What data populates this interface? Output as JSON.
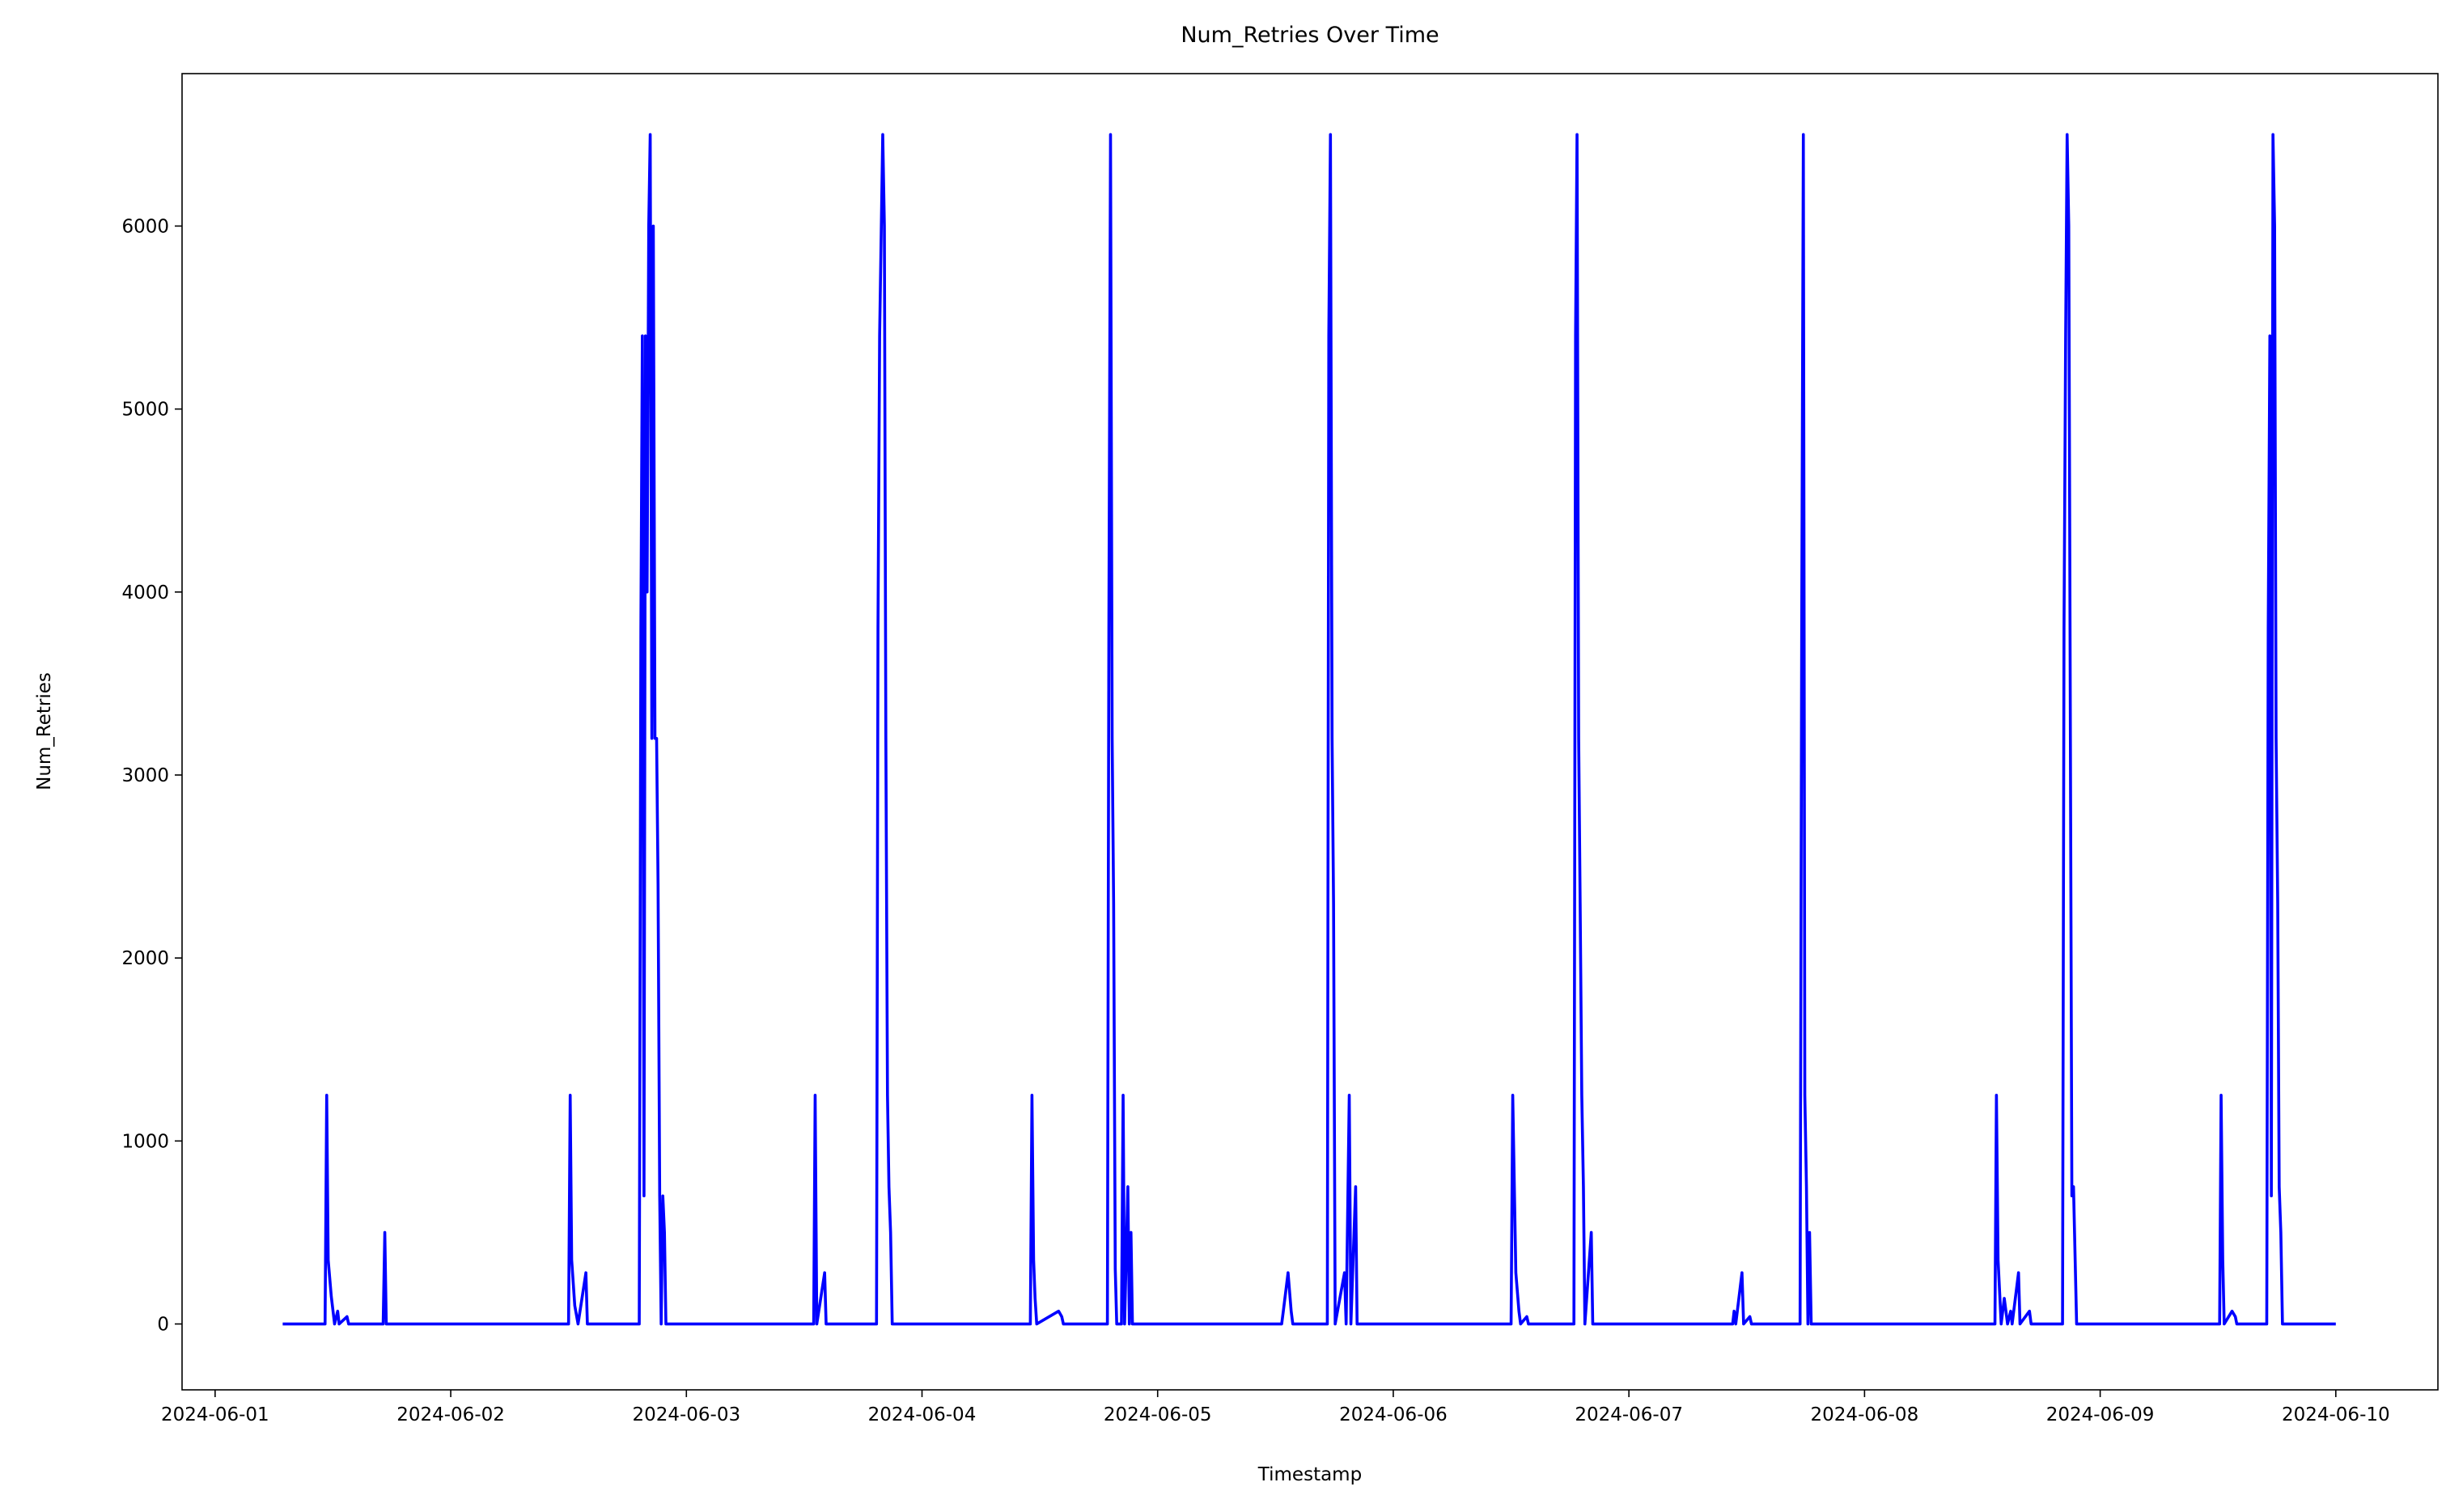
{
  "chart_data": {
    "type": "line",
    "title": "Num_Retries Over Time",
    "x_label": "Timestamp",
    "y_label": "Num_Retries",
    "color": "#0000ff",
    "x": [
      "2024-06-01 06:53",
      "2024-06-01 11:12",
      "2024-06-01 11:22",
      "2024-06-01 11:31",
      "2024-06-01 11:50",
      "2024-06-01 12:10",
      "2024-06-01 12:29",
      "2024-06-01 12:38",
      "2024-06-01 13:26",
      "2024-06-01 13:36",
      "2024-06-01 17:07",
      "2024-06-01 17:17",
      "2024-06-01 17:26",
      "2024-06-02 12:00",
      "2024-06-02 12:10",
      "2024-06-02 12:19",
      "2024-06-02 12:38",
      "2024-06-02 12:58",
      "2024-06-02 13:46",
      "2024-06-02 13:55",
      "2024-06-02 19:12",
      "2024-06-02 19:22",
      "2024-06-02 19:31",
      "2024-06-02 19:41",
      "2024-06-02 19:50",
      "2024-06-02 20:00",
      "2024-06-02 20:10",
      "2024-06-02 20:19",
      "2024-06-02 20:29",
      "2024-06-02 20:38",
      "2024-06-02 20:48",
      "2024-06-02 20:58",
      "2024-06-02 21:07",
      "2024-06-02 21:17",
      "2024-06-02 21:26",
      "2024-06-02 21:36",
      "2024-06-02 21:46",
      "2024-06-02 21:55",
      "2024-06-03 12:58",
      "2024-06-03 13:07",
      "2024-06-03 13:17",
      "2024-06-03 14:05",
      "2024-06-03 14:14",
      "2024-06-03 19:22",
      "2024-06-03 19:31",
      "2024-06-03 19:41",
      "2024-06-03 20:00",
      "2024-06-03 20:10",
      "2024-06-03 20:19",
      "2024-06-03 20:29",
      "2024-06-03 20:38",
      "2024-06-03 20:48",
      "2024-06-03 20:58",
      "2024-06-04 11:02",
      "2024-06-04 11:12",
      "2024-06-04 11:22",
      "2024-06-04 11:31",
      "2024-06-04 11:41",
      "2024-06-04 13:55",
      "2024-06-04 14:14",
      "2024-06-04 14:24",
      "2024-06-04 18:53",
      "2024-06-04 19:02",
      "2024-06-04 19:12",
      "2024-06-04 19:22",
      "2024-06-04 19:31",
      "2024-06-04 19:41",
      "2024-06-04 19:50",
      "2024-06-04 20:19",
      "2024-06-04 20:29",
      "2024-06-04 20:38",
      "2024-06-04 20:58",
      "2024-06-04 21:07",
      "2024-06-04 21:17",
      "2024-06-04 21:26",
      "2024-06-05 12:38",
      "2024-06-05 12:48",
      "2024-06-05 13:17",
      "2024-06-05 13:36",
      "2024-06-05 13:46",
      "2024-06-05 17:17",
      "2024-06-05 17:26",
      "2024-06-05 17:36",
      "2024-06-05 17:46",
      "2024-06-05 17:55",
      "2024-06-05 18:05",
      "2024-06-05 19:02",
      "2024-06-05 19:12",
      "2024-06-05 19:31",
      "2024-06-05 19:41",
      "2024-06-05 20:10",
      "2024-06-05 20:19",
      "2024-06-06 12:00",
      "2024-06-06 12:10",
      "2024-06-06 12:29",
      "2024-06-06 12:48",
      "2024-06-06 12:58",
      "2024-06-06 13:36",
      "2024-06-06 13:46",
      "2024-06-06 18:24",
      "2024-06-06 18:34",
      "2024-06-06 18:43",
      "2024-06-06 18:53",
      "2024-06-06 19:02",
      "2024-06-06 19:12",
      "2024-06-06 19:22",
      "2024-06-06 19:31",
      "2024-06-06 20:10",
      "2024-06-06 20:19",
      "2024-06-07 10:34",
      "2024-06-07 10:43",
      "2024-06-07 10:53",
      "2024-06-07 11:31",
      "2024-06-07 11:41",
      "2024-06-07 12:19",
      "2024-06-07 12:29",
      "2024-06-07 17:26",
      "2024-06-07 17:36",
      "2024-06-07 17:46",
      "2024-06-07 17:55",
      "2024-06-07 18:05",
      "2024-06-07 18:14",
      "2024-06-07 18:24",
      "2024-06-07 18:34",
      "2024-06-08 13:17",
      "2024-06-08 13:26",
      "2024-06-08 13:36",
      "2024-06-08 13:55",
      "2024-06-08 14:14",
      "2024-06-08 14:34",
      "2024-06-08 14:53",
      "2024-06-08 15:02",
      "2024-06-08 15:41",
      "2024-06-08 15:50",
      "2024-06-08 16:48",
      "2024-06-08 16:58",
      "2024-06-08 20:10",
      "2024-06-08 20:19",
      "2024-06-08 20:29",
      "2024-06-08 20:38",
      "2024-06-08 20:48",
      "2024-06-08 20:58",
      "2024-06-08 21:07",
      "2024-06-08 21:17",
      "2024-06-08 21:36",
      "2024-06-09 12:10",
      "2024-06-09 12:19",
      "2024-06-09 12:29",
      "2024-06-09 12:38",
      "2024-06-09 13:26",
      "2024-06-09 13:46",
      "2024-06-09 13:55",
      "2024-06-09 16:58",
      "2024-06-09 17:07",
      "2024-06-09 17:17",
      "2024-06-09 17:26",
      "2024-06-09 17:36",
      "2024-06-09 17:46",
      "2024-06-09 17:55",
      "2024-06-09 18:05",
      "2024-06-09 18:14",
      "2024-06-09 18:24",
      "2024-06-09 18:34",
      "2024-06-10 00:00"
    ],
    "values": [
      0,
      0,
      1250,
      350,
      150,
      0,
      70,
      0,
      40,
      0,
      0,
      500,
      0,
      0,
      1250,
      350,
      100,
      0,
      280,
      0,
      0,
      3800,
      5400,
      700,
      5400,
      4000,
      6000,
      6500,
      3200,
      6000,
      3200,
      3200,
      2400,
      700,
      0,
      700,
      500,
      0,
      0,
      1250,
      0,
      280,
      0,
      0,
      3800,
      5400,
      6500,
      6000,
      3200,
      1250,
      750,
      500,
      0,
      0,
      1250,
      350,
      140,
      0,
      70,
      40,
      0,
      0,
      3800,
      6500,
      3200,
      2300,
      300,
      0,
      0,
      1250,
      0,
      750,
      0,
      500,
      0,
      0,
      70,
      280,
      70,
      0,
      0,
      5400,
      6500,
      3200,
      2300,
      0,
      280,
      0,
      1250,
      0,
      750,
      0,
      0,
      1250,
      280,
      70,
      0,
      40,
      0,
      0,
      5400,
      6500,
      3200,
      2300,
      1250,
      750,
      0,
      500,
      0,
      0,
      70,
      0,
      280,
      0,
      40,
      0,
      0,
      3800,
      6500,
      1250,
      750,
      0,
      500,
      0,
      0,
      1250,
      350,
      0,
      140,
      0,
      70,
      0,
      280,
      0,
      70,
      0,
      0,
      3800,
      5400,
      6500,
      6000,
      3200,
      700,
      750,
      0,
      0,
      1250,
      350,
      0,
      70,
      40,
      0,
      0,
      3800,
      5400,
      700,
      6500,
      6000,
      3200,
      2300,
      750,
      500,
      0,
      0
    ],
    "xlim": [
      "2024-05-31 20:38",
      "2024-06-10 10:24"
    ],
    "xticks": [
      "2024-06-01",
      "2024-06-02",
      "2024-06-03",
      "2024-06-04",
      "2024-06-05",
      "2024-06-06",
      "2024-06-07",
      "2024-06-08",
      "2024-06-09",
      "2024-06-10"
    ],
    "ylim": [
      -360,
      6833
    ],
    "yticks": [
      0,
      1000,
      2000,
      3000,
      4000,
      5000,
      6000
    ],
    "grid": false
  }
}
